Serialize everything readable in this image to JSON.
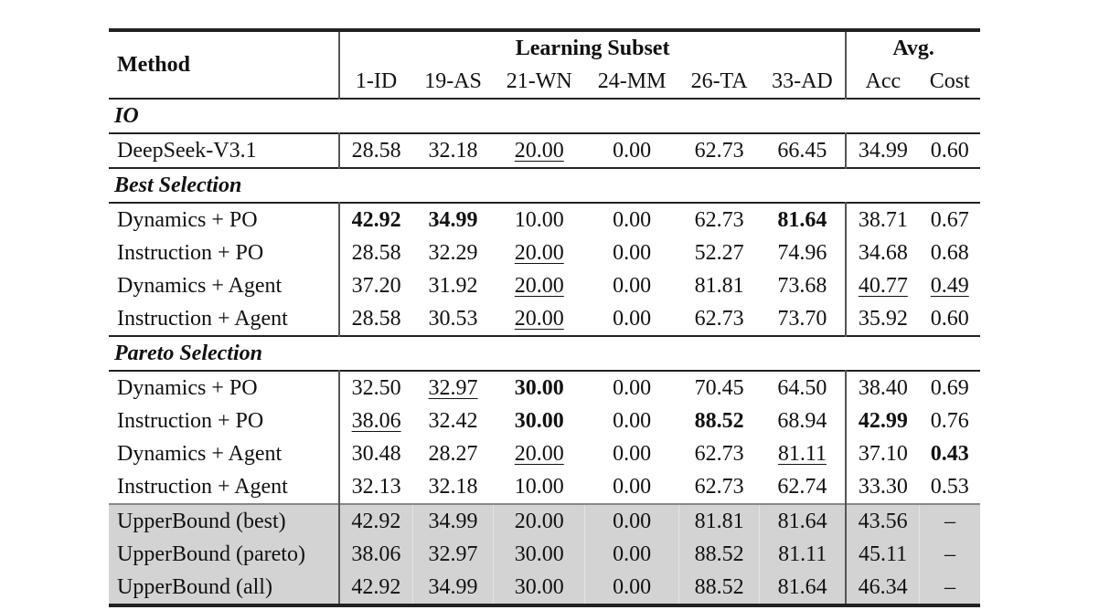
{
  "table": {
    "header": {
      "method": "Method",
      "group_learning": "Learning Subset",
      "group_avg": "Avg.",
      "subset_columns": [
        "1-ID",
        "19-AS",
        "21-WN",
        "24-MM",
        "26-TA",
        "33-AD"
      ],
      "avg_columns": [
        "Acc",
        "Cost"
      ]
    },
    "sections": [
      {
        "title": "IO",
        "rows": [
          {
            "method": "DeepSeek-V3.1",
            "values": [
              "28.58",
              "32.18",
              "20.00",
              "0.00",
              "62.73",
              "66.45",
              "34.99",
              "0.60"
            ],
            "style": [
              "",
              "",
              "u",
              "",
              "",
              "",
              "",
              ""
            ]
          }
        ]
      },
      {
        "title": "Best Selection",
        "rows": [
          {
            "method": "Dynamics + PO",
            "values": [
              "42.92",
              "34.99",
              "10.00",
              "0.00",
              "62.73",
              "81.64",
              "38.71",
              "0.67"
            ],
            "style": [
              "b",
              "b",
              "",
              "",
              "",
              "b",
              "",
              ""
            ]
          },
          {
            "method": "Instruction + PO",
            "values": [
              "28.58",
              "32.29",
              "20.00",
              "0.00",
              "52.27",
              "74.96",
              "34.68",
              "0.68"
            ],
            "style": [
              "",
              "",
              "u",
              "",
              "",
              "",
              "",
              ""
            ]
          },
          {
            "method": "Dynamics + Agent",
            "values": [
              "37.20",
              "31.92",
              "20.00",
              "0.00",
              "81.81",
              "73.68",
              "40.77",
              "0.49"
            ],
            "style": [
              "",
              "",
              "u",
              "",
              "",
              "",
              "u",
              "u"
            ]
          },
          {
            "method": "Instruction + Agent",
            "values": [
              "28.58",
              "30.53",
              "20.00",
              "0.00",
              "62.73",
              "73.70",
              "35.92",
              "0.60"
            ],
            "style": [
              "",
              "",
              "u",
              "",
              "",
              "",
              "",
              ""
            ]
          }
        ]
      },
      {
        "title": "Pareto Selection",
        "rows": [
          {
            "method": "Dynamics + PO",
            "values": [
              "32.50",
              "32.97",
              "30.00",
              "0.00",
              "70.45",
              "64.50",
              "38.40",
              "0.69"
            ],
            "style": [
              "",
              "u",
              "b",
              "",
              "",
              "",
              "",
              ""
            ]
          },
          {
            "method": "Instruction + PO",
            "values": [
              "38.06",
              "32.42",
              "30.00",
              "0.00",
              "88.52",
              "68.94",
              "42.99",
              "0.76"
            ],
            "style": [
              "u",
              "",
              "b",
              "",
              "b",
              "",
              "b",
              ""
            ]
          },
          {
            "method": "Dynamics + Agent",
            "values": [
              "30.48",
              "28.27",
              "20.00",
              "0.00",
              "62.73",
              "81.11",
              "37.10",
              "0.43"
            ],
            "style": [
              "",
              "",
              "u",
              "",
              "",
              "u",
              "",
              "b"
            ]
          },
          {
            "method": "Instruction + Agent",
            "values": [
              "32.13",
              "32.18",
              "10.00",
              "0.00",
              "62.73",
              "62.74",
              "33.30",
              "0.53"
            ],
            "style": [
              "",
              "",
              "",
              "",
              "",
              "",
              "",
              ""
            ]
          }
        ]
      }
    ],
    "upper_bounds": [
      {
        "method": "UpperBound (best)",
        "values": [
          "42.92",
          "34.99",
          "20.00",
          "0.00",
          "81.81",
          "81.64",
          "43.56",
          "–"
        ]
      },
      {
        "method": "UpperBound (pareto)",
        "values": [
          "38.06",
          "32.97",
          "30.00",
          "0.00",
          "88.52",
          "81.11",
          "45.11",
          "–"
        ]
      },
      {
        "method": "UpperBound (all)",
        "values": [
          "42.92",
          "34.99",
          "30.00",
          "0.00",
          "88.52",
          "81.64",
          "46.34",
          "–"
        ]
      }
    ],
    "colors": {
      "upper_bound_bg": "#d3d3d3",
      "rule": "#222222"
    }
  }
}
